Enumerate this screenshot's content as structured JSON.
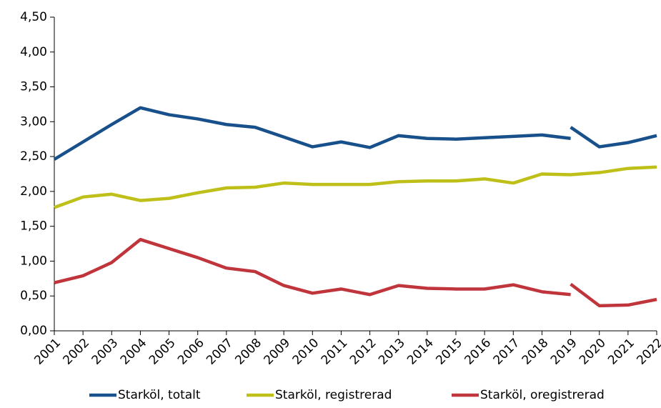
{
  "chart_data": {
    "type": "line",
    "xlim": [
      2001,
      2022
    ],
    "xticks": [
      2001,
      2002,
      2003,
      2004,
      2005,
      2006,
      2007,
      2008,
      2009,
      2010,
      2011,
      2012,
      2013,
      2014,
      2015,
      2016,
      2017,
      2018,
      2019,
      2020,
      2021,
      2022
    ],
    "ylim": [
      0,
      4.5
    ],
    "yticks": [
      {
        "value": 0,
        "label": "0,00"
      },
      {
        "value": 0.5,
        "label": "0,50"
      },
      {
        "value": 1,
        "label": "1,00"
      },
      {
        "value": 1.5,
        "label": "1,50"
      },
      {
        "value": 2,
        "label": "2,00"
      },
      {
        "value": 2.5,
        "label": "2,50"
      },
      {
        "value": 3,
        "label": "3,00"
      },
      {
        "value": 3.5,
        "label": "3,50"
      },
      {
        "value": 4,
        "label": "4,00"
      },
      {
        "value": 4.5,
        "label": "4,50"
      }
    ],
    "grid": false,
    "legend": "bottom",
    "series": [
      {
        "name": "Starköl, totalt",
        "color": "#17508a",
        "x": [
          2001,
          2002,
          2003,
          2004,
          2005,
          2006,
          2007,
          2008,
          2009,
          2010,
          2011,
          2012,
          2013,
          2014,
          2015,
          2016,
          2017,
          2018,
          2019,
          2019,
          2019,
          2020,
          2021,
          2022
        ],
        "values": [
          2.46,
          2.71,
          2.96,
          3.2,
          3.1,
          3.04,
          2.96,
          2.92,
          2.78,
          2.64,
          2.71,
          2.63,
          2.8,
          2.76,
          2.75,
          2.77,
          2.79,
          2.81,
          2.76,
          null,
          2.92,
          2.64,
          2.7,
          2.8
        ]
      },
      {
        "name": "Starköl, registrerad",
        "color": "#bfbf1a",
        "x": [
          2001,
          2002,
          2003,
          2004,
          2005,
          2006,
          2007,
          2008,
          2009,
          2010,
          2011,
          2012,
          2013,
          2014,
          2015,
          2016,
          2017,
          2018,
          2019,
          2020,
          2021,
          2022
        ],
        "values": [
          1.77,
          1.92,
          1.96,
          1.87,
          1.9,
          1.98,
          2.05,
          2.06,
          2.12,
          2.1,
          2.1,
          2.1,
          2.14,
          2.15,
          2.15,
          2.18,
          2.12,
          2.25,
          2.24,
          2.27,
          2.33,
          2.35
        ]
      },
      {
        "name": "Starköl, oregistrerad",
        "color": "#c0353b",
        "x": [
          2001,
          2002,
          2003,
          2004,
          2005,
          2006,
          2007,
          2008,
          2009,
          2010,
          2011,
          2012,
          2013,
          2014,
          2015,
          2016,
          2017,
          2018,
          2019,
          2019,
          2019,
          2020,
          2021,
          2022
        ],
        "values": [
          0.69,
          0.79,
          0.98,
          1.31,
          1.18,
          1.05,
          0.9,
          0.85,
          0.65,
          0.54,
          0.6,
          0.52,
          0.65,
          0.61,
          0.6,
          0.6,
          0.66,
          0.56,
          0.52,
          null,
          0.67,
          0.36,
          0.37,
          0.45
        ]
      }
    ]
  }
}
